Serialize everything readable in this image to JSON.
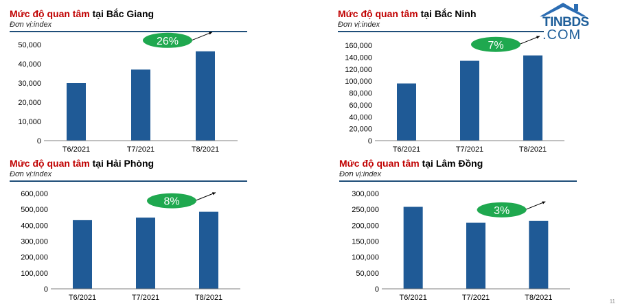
{
  "logo": {
    "line1": "TINBDS",
    "line2": ".COM"
  },
  "page_number": "11",
  "chart_data": [
    {
      "type": "bar",
      "title_highlight": "Mức độ quan tâm",
      "title_rest": " tại Bắc Giang",
      "unit": "Đơn vị:index",
      "categories": [
        "T6/2021",
        "T7/2021",
        "T8/2021"
      ],
      "values": [
        30000,
        37000,
        46500
      ],
      "yticks": [
        "0",
        "10,000",
        "20,000",
        "30,000",
        "40,000",
        "50,000"
      ],
      "ylim": [
        0,
        50000
      ],
      "change_label": "26%",
      "bar_color": "#1f5a96",
      "badge_color": "#1fa84f"
    },
    {
      "type": "bar",
      "title_highlight": "Mức độ quan tâm",
      "title_rest": " tại Bắc Ninh",
      "unit": "Đơn vị:index",
      "categories": [
        "T6/2021",
        "T7/2021",
        "T8/2021"
      ],
      "values": [
        96000,
        134000,
        143000
      ],
      "yticks": [
        "0",
        "20,000",
        "40,000",
        "60,000",
        "80,000",
        "100,000",
        "120,000",
        "140,000",
        "160,000"
      ],
      "ylim": [
        0,
        160000
      ],
      "change_label": "7%",
      "bar_color": "#1f5a96",
      "badge_color": "#1fa84f"
    },
    {
      "type": "bar",
      "title_highlight": "Mức độ quan tâm",
      "title_rest": " tại Hải Phòng",
      "unit": "Đơn vị:index",
      "categories": [
        "T6/2021",
        "T7/2021",
        "T8/2021"
      ],
      "values": [
        432000,
        448000,
        485000
      ],
      "yticks": [
        "0",
        "100,000",
        "200,000",
        "300,000",
        "400,000",
        "500,000",
        "600,000"
      ],
      "ylim": [
        0,
        600000
      ],
      "change_label": "8%",
      "bar_color": "#1f5a96",
      "badge_color": "#1fa84f"
    },
    {
      "type": "bar",
      "title_highlight": "Mức độ quan tâm",
      "title_rest": " tại Lâm Đồng",
      "unit": "Đơn vị:index",
      "categories": [
        "T6/2021",
        "T7/2021",
        "T8/2021"
      ],
      "values": [
        258000,
        208000,
        214000
      ],
      "yticks": [
        "0",
        "50,000",
        "100,000",
        "150,000",
        "200,000",
        "250,000",
        "300,000"
      ],
      "ylim": [
        0,
        300000
      ],
      "change_label": "3%",
      "bar_color": "#1f5a96",
      "badge_color": "#1fa84f"
    }
  ]
}
